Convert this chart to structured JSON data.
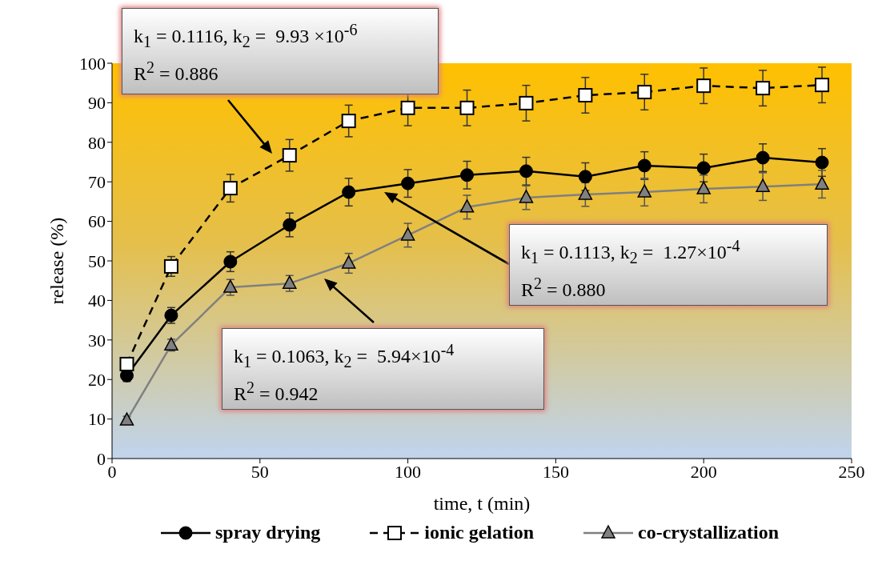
{
  "chart_data": {
    "type": "line",
    "xlabel": "time, t (min)",
    "ylabel": "release (%)",
    "x": [
      5,
      20,
      40,
      60,
      80,
      100,
      120,
      140,
      160,
      180,
      200,
      220,
      240
    ],
    "xlim": [
      0,
      250
    ],
    "xticks": [
      0,
      50,
      100,
      150,
      200,
      250
    ],
    "ylim": [
      0,
      100
    ],
    "yticks": [
      0,
      10,
      20,
      30,
      40,
      50,
      60,
      70,
      80,
      90,
      100
    ],
    "legend": "bottom",
    "series": [
      {
        "name": "spray drying",
        "color": "#000000",
        "marker": "circle",
        "line_style": "solid",
        "values": [
          21,
          36.2,
          49.8,
          59.1,
          67.4,
          69.6,
          71.7,
          72.7,
          71.3,
          74.1,
          73.5,
          76.1,
          74.9
        ],
        "errors": [
          1.5,
          2,
          2.5,
          3,
          3.5,
          3.5,
          3.5,
          3.5,
          3.5,
          3.5,
          3.5,
          3.5,
          3.5
        ]
      },
      {
        "name": "ionic gelation",
        "color": "#000000",
        "marker": "square",
        "line_style": "dashed",
        "values": [
          23.9,
          48.6,
          68.4,
          76.7,
          85.4,
          88.7,
          88.7,
          89.9,
          91.9,
          92.7,
          94.3,
          93.7,
          94.5
        ],
        "errors": [
          1,
          2.5,
          3.5,
          4,
          4,
          4.5,
          4.5,
          4.5,
          4.5,
          4.5,
          4.5,
          4.5,
          4.5
        ]
      },
      {
        "name": "co-crystallization",
        "color": "#808080",
        "marker": "triangle",
        "line_style": "solid",
        "values": [
          9.7,
          28.7,
          43.3,
          44.3,
          49.4,
          56.5,
          63.6,
          66,
          66.8,
          67.4,
          68.2,
          68.8,
          69.4
        ],
        "errors": [
          1,
          1.5,
          2,
          2,
          2.5,
          3,
          3,
          3,
          3,
          3.5,
          3.5,
          3.5,
          3.5
        ]
      }
    ],
    "annotations": [
      "k$_{1}$ = 0.1116, k$_{2}$ =  9.93 ×10$^{-6}$\nR$^{2}$ = 0.886",
      "k$_{1}$ = 0.1113, k$_{2}$ =  1.27×10$^{-4}$\nR$^{2}$ = 0.880",
      "k$_{1}$ = 0.1063, k$_{2}$ =  5.94×10$^{-4}$\nR$^{2}$ = 0.942"
    ]
  }
}
